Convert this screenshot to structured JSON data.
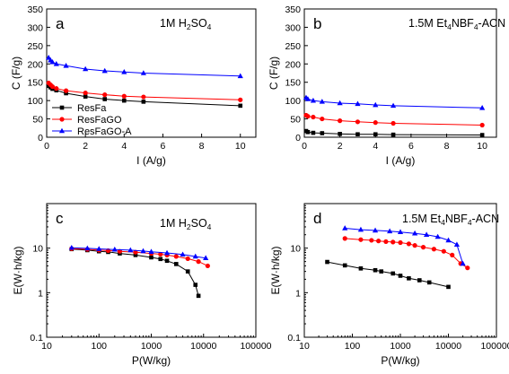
{
  "chart_data": [
    {
      "type": "line",
      "panel_label": "a",
      "annotation": {
        "base": "1M H",
        "sub": "2",
        "rest": "SO",
        "sub2": "4"
      },
      "xlabel": "I (A/g)",
      "ylabel": "C (F/g)",
      "xscale": "linear",
      "yscale": "linear",
      "xlim": [
        0,
        10.8
      ],
      "ylim": [
        0,
        350
      ],
      "xticks": [
        0,
        2,
        4,
        6,
        8,
        10
      ],
      "yticks": [
        0,
        50,
        100,
        150,
        200,
        250,
        300,
        350
      ],
      "legend_placement": "bottom-left",
      "series": [
        {
          "name": "ResFa",
          "marker": "square",
          "color": "#000000",
          "x": [
            0.1,
            0.2,
            0.3,
            0.5,
            1,
            2,
            3,
            4,
            5,
            10
          ],
          "y": [
            140,
            136,
            132,
            128,
            120,
            111,
            104,
            100,
            97,
            86
          ]
        },
        {
          "name": "ResFaGO",
          "marker": "circle",
          "color": "#ff0000",
          "x": [
            0.1,
            0.2,
            0.3,
            0.5,
            1,
            2,
            3,
            4,
            5,
            10
          ],
          "y": [
            148,
            143,
            138,
            133,
            127,
            121,
            116,
            112,
            110,
            102
          ]
        },
        {
          "name": "ResFaGO-A",
          "marker": "triangle",
          "color": "#0000ff",
          "x": [
            0.1,
            0.2,
            0.3,
            0.5,
            1,
            2,
            3,
            4,
            5,
            10
          ],
          "y": [
            217,
            210,
            205,
            200,
            195,
            186,
            181,
            178,
            175,
            167
          ]
        }
      ]
    },
    {
      "type": "line",
      "panel_label": "b",
      "annotation": {
        "base": "1.5M Et",
        "sub": "4",
        "rest": "NBF",
        "sub2": "4",
        "tail": "-ACN"
      },
      "xlabel": "I (A/g)",
      "ylabel": "C (F/g)",
      "xscale": "linear",
      "yscale": "linear",
      "xlim": [
        0,
        10.8
      ],
      "ylim": [
        0,
        350
      ],
      "xticks": [
        0,
        2,
        4,
        6,
        8,
        10
      ],
      "yticks": [
        0,
        50,
        100,
        150,
        200,
        250,
        300,
        350
      ],
      "series": [
        {
          "name": "ResFa",
          "marker": "square",
          "color": "#000000",
          "x": [
            0.1,
            0.2,
            0.5,
            1,
            2,
            3,
            4,
            5,
            10
          ],
          "y": [
            17,
            14,
            12,
            11,
            9,
            8,
            8,
            7,
            6
          ]
        },
        {
          "name": "ResFaGO",
          "marker": "circle",
          "color": "#ff0000",
          "x": [
            0.1,
            0.2,
            0.5,
            1,
            2,
            3,
            4,
            5,
            10
          ],
          "y": [
            60,
            57,
            55,
            50,
            45,
            42,
            40,
            38,
            33
          ]
        },
        {
          "name": "ResFaGO-A",
          "marker": "triangle",
          "color": "#0000ff",
          "x": [
            0.1,
            0.2,
            0.5,
            1,
            2,
            3,
            4,
            5,
            10
          ],
          "y": [
            108,
            104,
            100,
            97,
            93,
            91,
            88,
            86,
            80
          ]
        }
      ]
    },
    {
      "type": "line",
      "panel_label": "c",
      "annotation": {
        "base": "1M H",
        "sub": "2",
        "rest": "SO",
        "sub2": "4"
      },
      "xlabel": "P(W/kg)",
      "ylabel": "E(W·h/kg)",
      "xscale": "log",
      "yscale": "log",
      "xlim": [
        10,
        100000
      ],
      "ylim": [
        0.1,
        100
      ],
      "xticks": [
        10,
        100,
        1000,
        10000,
        100000
      ],
      "xticklabels": [
        "10",
        "100",
        "1000",
        "10000",
        "100000"
      ],
      "yticks": [
        0.1,
        1,
        10
      ],
      "yticklabels": [
        "0.1",
        "1",
        "10"
      ],
      "series": [
        {
          "name": "ResFa",
          "marker": "square",
          "color": "#000000",
          "x": [
            30,
            60,
            100,
            150,
            250,
            500,
            1000,
            1500,
            2000,
            3000,
            5000,
            7000,
            8000
          ],
          "y": [
            9.5,
            9.0,
            8.5,
            8.2,
            7.6,
            7.0,
            6.2,
            5.7,
            5.2,
            4.4,
            3.0,
            1.5,
            0.85
          ]
        },
        {
          "name": "ResFaGO",
          "marker": "circle",
          "color": "#ff0000",
          "x": [
            30,
            60,
            100,
            150,
            250,
            500,
            1000,
            1500,
            2000,
            3000,
            5000,
            8000,
            12000
          ],
          "y": [
            9.7,
            9.4,
            9.0,
            8.8,
            8.5,
            8.1,
            7.6,
            7.3,
            7.0,
            6.5,
            5.8,
            5.0,
            4.0
          ]
        },
        {
          "name": "ResFaGO-A",
          "marker": "triangle",
          "color": "#0000ff",
          "x": [
            30,
            60,
            100,
            200,
            400,
            700,
            1000,
            2000,
            4000,
            7000,
            11000
          ],
          "y": [
            10.2,
            9.9,
            9.6,
            9.3,
            9.0,
            8.6,
            8.3,
            7.8,
            7.2,
            6.5,
            6.0
          ]
        }
      ]
    },
    {
      "type": "line",
      "panel_label": "d",
      "annotation": {
        "base": "1.5M Et",
        "sub": "4",
        "rest": "NBF",
        "sub2": "4",
        "tail": "-ACN"
      },
      "xlabel": "P(W/kg)",
      "ylabel": "E(W·h/kg)",
      "xscale": "log",
      "yscale": "log",
      "xlim": [
        10,
        100000
      ],
      "ylim": [
        0.1,
        100
      ],
      "xticks": [
        10,
        100,
        1000,
        10000,
        100000
      ],
      "xticklabels": [
        "10",
        "100",
        "1000",
        "10000",
        "100000"
      ],
      "yticks": [
        0.1,
        1,
        10
      ],
      "yticklabels": [
        "0.1",
        "1",
        "10"
      ],
      "series": [
        {
          "name": "ResFa",
          "marker": "square",
          "color": "#000000",
          "x": [
            30,
            70,
            150,
            300,
            400,
            700,
            1000,
            1500,
            2500,
            4000,
            10000
          ],
          "y": [
            4.9,
            4.1,
            3.5,
            3.2,
            3.0,
            2.7,
            2.4,
            2.1,
            1.9,
            1.7,
            1.35
          ]
        },
        {
          "name": "ResFaGO",
          "marker": "circle",
          "color": "#ff0000",
          "x": [
            70,
            150,
            250,
            350,
            500,
            700,
            1000,
            1500,
            2000,
            3000,
            5000,
            8000,
            12000,
            18000,
            25000
          ],
          "y": [
            16.5,
            15.5,
            15.0,
            14.5,
            14.0,
            13.7,
            13.3,
            12.5,
            11.5,
            10.5,
            9.5,
            8.5,
            7.0,
            4.5,
            3.6
          ]
        },
        {
          "name": "ResFaGO-A",
          "marker": "triangle",
          "color": "#0000ff",
          "x": [
            70,
            150,
            300,
            600,
            1000,
            2000,
            3500,
            6000,
            10000,
            15000,
            20000
          ],
          "y": [
            28,
            26,
            25,
            24,
            23,
            21.5,
            20,
            18,
            15,
            12,
            4.5
          ]
        }
      ]
    }
  ]
}
